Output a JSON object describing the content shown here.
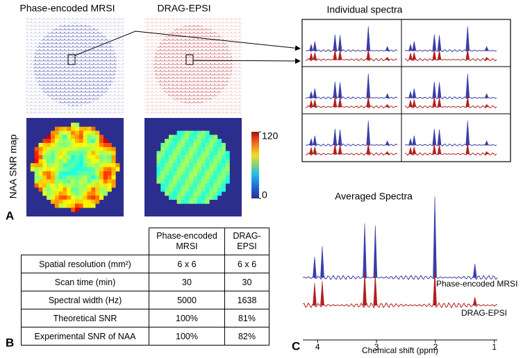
{
  "panel_a": {
    "label": "A",
    "titles": [
      "Phase-encoded MRSI",
      "DRAG-EPSI"
    ],
    "map_label": "NAA SNR map",
    "colorbar": {
      "lim": [
        0,
        120
      ],
      "ticks": [
        0,
        120
      ]
    }
  },
  "individual_spectra": {
    "title": "Individual spectra"
  },
  "table": {
    "label": "B",
    "columns": [
      "Phase-encoded MRSI",
      "DRAG-EPSI"
    ],
    "rows": [
      [
        "Spatial resolution (mm²)",
        "6 x 6",
        "6 x 6"
      ],
      [
        "Scan time (min)",
        "30",
        "30"
      ],
      [
        "Spectral width (Hz)",
        "5000",
        "1638"
      ],
      [
        "Theoretical SNR",
        "100%",
        "81%"
      ],
      [
        "Experimental SNR of NAA",
        "100%",
        "82%"
      ]
    ]
  },
  "averaged_spectra": {
    "label": "C",
    "title": "Averaged Spectra",
    "x_label": "Chemical shift (ppm)",
    "xlim": [
      4.25,
      0.95
    ],
    "xticks": [
      4,
      3,
      2,
      1
    ],
    "peaks_ppm": [
      4.05,
      3.92,
      3.2,
      3.02,
      2.01,
      1.33
    ],
    "series": [
      {
        "name": "Phase-encoded MRSI",
        "color": "#3a3ea6",
        "heights": [
          30,
          45,
          78,
          75,
          117,
          20
        ]
      },
      {
        "name": "DRAG-EPSI",
        "color": "#b02020",
        "heights": [
          32,
          35,
          48,
          45,
          50,
          12
        ]
      }
    ]
  }
}
